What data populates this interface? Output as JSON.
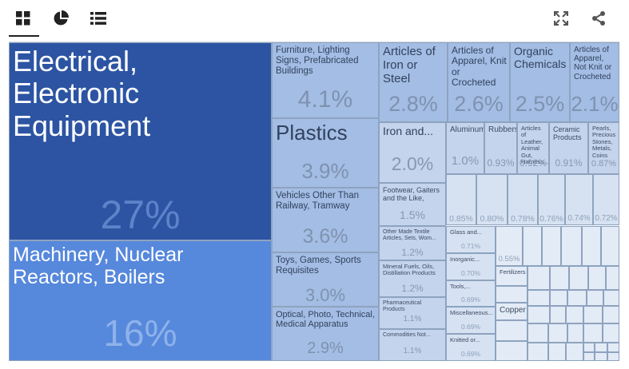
{
  "toolbar": {
    "tabs": [
      {
        "name": "treemap-view-tab",
        "icon": "grid-icon",
        "active": true
      },
      {
        "name": "pie-view-tab",
        "icon": "pie-chart-icon",
        "active": false
      },
      {
        "name": "list-view-tab",
        "icon": "list-icon",
        "active": false
      }
    ],
    "actions": [
      {
        "name": "fullscreen-button",
        "icon": "fullscreen-icon"
      },
      {
        "name": "share-button",
        "icon": "share-icon"
      }
    ]
  },
  "colors": {
    "top1": "#2c54a3",
    "top2": "#5688dc",
    "mid": "#a3bde4",
    "light": "#c3d4ec",
    "lighter": "#d6e2f2",
    "lightest": "#e2ebf6"
  },
  "chart_data": {
    "type": "treemap",
    "cells": [
      {
        "label": "Electrical, Electronic Equipment",
        "value": "27%"
      },
      {
        "label": "Machinery, Nuclear Reactors, Boilers",
        "value": "16%"
      },
      {
        "label": "Furniture, Lighting Signs, Prefabricated Buildings",
        "value": "4.1%"
      },
      {
        "label": "Plastics",
        "value": "3.9%"
      },
      {
        "label": "Vehicles Other Than Railway, Tramway",
        "value": "3.6%"
      },
      {
        "label": "Toys, Games, Sports Requisites",
        "value": "3.0%"
      },
      {
        "label": "Optical, Photo, Technical, Medical Apparatus",
        "value": "2.9%"
      },
      {
        "label": "Articles of Iron or Steel",
        "value": "2.8%"
      },
      {
        "label": "Articles of Apparel, Knit or Crocheted",
        "value": "2.6%"
      },
      {
        "label": "Organic Chemicals",
        "value": "2.5%"
      },
      {
        "label": "Articles of Apparel, Not Knit or Crocheted",
        "value": "2.1%"
      },
      {
        "label": "Iron and...",
        "value": "2.0%"
      },
      {
        "label": "Aluminum",
        "value": "1.0%"
      },
      {
        "label": "Rubbers",
        "value": "0.93%"
      },
      {
        "label": "Articles of Leather, Animal Gut, Harness,...",
        "value": "0.92%"
      },
      {
        "label": "Ceramic Products",
        "value": "0.91%"
      },
      {
        "label": "Pearls, Precious Stones, Metals, Coins",
        "value": "0.87%"
      },
      {
        "label": "Footwear, Gaiters and the Like,",
        "value": "1.5%"
      },
      {
        "label": "",
        "value": "0.85%"
      },
      {
        "label": "",
        "value": "0.80%"
      },
      {
        "label": "",
        "value": "0.78%"
      },
      {
        "label": "",
        "value": "0.76%"
      },
      {
        "label": "",
        "value": "0.74%"
      },
      {
        "label": "",
        "value": "0.72%"
      },
      {
        "label": "Other Made Textile Articles, Sets, Wom...",
        "value": "1.2%"
      },
      {
        "label": "Glass and...",
        "value": "0.71%"
      },
      {
        "label": "",
        "value": "0.55%"
      },
      {
        "label": "Mineral Fuels, Oils, Distillation Products",
        "value": "1.2%"
      },
      {
        "label": "Inorganic...",
        "value": "0.70%"
      },
      {
        "label": "Fertilizers",
        "value": ""
      },
      {
        "label": "Tools,...",
        "value": "0.69%"
      },
      {
        "label": "Pharmaceutical Products",
        "value": "1.1%"
      },
      {
        "label": "Miscellaneous...",
        "value": "0.69%"
      },
      {
        "label": "Copper",
        "value": ""
      },
      {
        "label": "Commodities Not...",
        "value": "1.1%"
      },
      {
        "label": "Knitted or...",
        "value": "0.69%"
      }
    ]
  }
}
